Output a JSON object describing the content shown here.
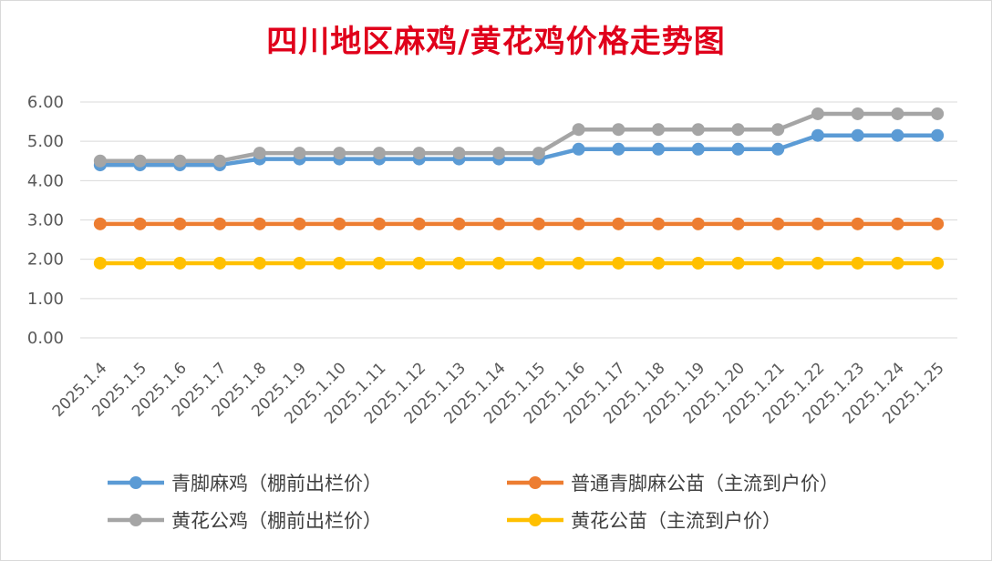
{
  "chart_data": {
    "type": "line",
    "title": "四川地区麻鸡/黄花鸡价格走势图",
    "xlabel": "",
    "ylabel": "",
    "ylim": [
      0,
      6
    ],
    "yticks": [
      "0.00",
      "1.00",
      "2.00",
      "3.00",
      "4.00",
      "5.00",
      "6.00"
    ],
    "categories": [
      "2025.1.4",
      "2025.1.5",
      "2025.1.6",
      "2025.1.7",
      "2025.1.8",
      "2025.1.9",
      "2025.1.10",
      "2025.1.11",
      "2025.1.12",
      "2025.1.13",
      "2025.1.14",
      "2025.1.15",
      "2025.1.16",
      "2025.1.17",
      "2025.1.18",
      "2025.1.19",
      "2025.1.20",
      "2025.1.21",
      "2025.1.22",
      "2025.1.23",
      "2025.1.24",
      "2025.1.25"
    ],
    "grid": true,
    "legend_position": "bottom",
    "series": [
      {
        "name": "青脚麻鸡（棚前出栏价）",
        "color": "#5b9bd5",
        "values": [
          4.4,
          4.4,
          4.4,
          4.4,
          4.55,
          4.55,
          4.55,
          4.55,
          4.55,
          4.55,
          4.55,
          4.55,
          4.8,
          4.8,
          4.8,
          4.8,
          4.8,
          4.8,
          5.15,
          5.15,
          5.15,
          5.15
        ]
      },
      {
        "name": "普通青脚麻公苗（主流到户价）",
        "color": "#ed7d31",
        "values": [
          2.9,
          2.9,
          2.9,
          2.9,
          2.9,
          2.9,
          2.9,
          2.9,
          2.9,
          2.9,
          2.9,
          2.9,
          2.9,
          2.9,
          2.9,
          2.9,
          2.9,
          2.9,
          2.9,
          2.9,
          2.9,
          2.9
        ]
      },
      {
        "name": "黄花公鸡（棚前出栏价）",
        "color": "#a5a5a5",
        "values": [
          4.5,
          4.5,
          4.5,
          4.5,
          4.7,
          4.7,
          4.7,
          4.7,
          4.7,
          4.7,
          4.7,
          4.7,
          5.3,
          5.3,
          5.3,
          5.3,
          5.3,
          5.3,
          5.7,
          5.7,
          5.7,
          5.7
        ]
      },
      {
        "name": "黄花公苗（主流到户价）",
        "color": "#ffc000",
        "values": [
          1.9,
          1.9,
          1.9,
          1.9,
          1.9,
          1.9,
          1.9,
          1.9,
          1.9,
          1.9,
          1.9,
          1.9,
          1.9,
          1.9,
          1.9,
          1.9,
          1.9,
          1.9,
          1.9,
          1.9,
          1.9,
          1.9
        ]
      }
    ]
  }
}
